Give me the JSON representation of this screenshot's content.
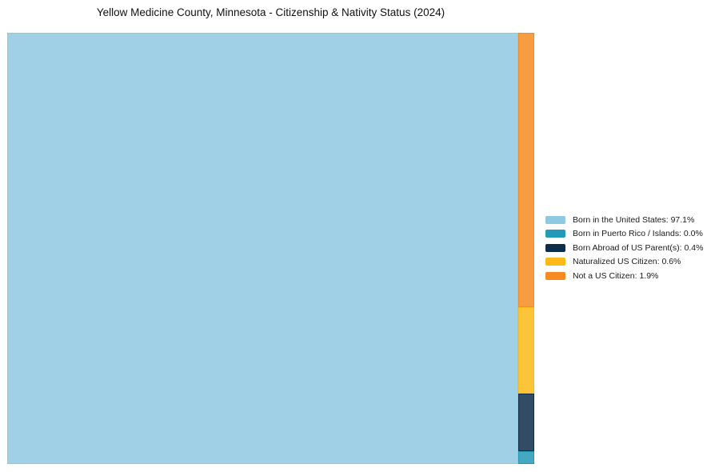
{
  "chart_data": {
    "type": "treemap",
    "title": "Yellow Medicine County, Minnesota - Citizenship & Nativity Status (2024)",
    "unit": "%",
    "legend_position": "right",
    "background_color": "#ffffff",
    "title_color": "#111111",
    "legend_text_color": "#1a1a1a",
    "categories": [
      {
        "label": "Born in the United States",
        "value": 97.1,
        "color": "#8fc8e2",
        "main": true
      },
      {
        "label": "Born in Puerto Rico / Islands",
        "value": 0.0,
        "color": "#2499b8",
        "main": false
      },
      {
        "label": "Born Abroad of US Parent(s)",
        "value": 0.4,
        "color": "#0e2d4a",
        "main": false
      },
      {
        "label": "Naturalized US Citizen",
        "value": 0.6,
        "color": "#fcba16",
        "main": false
      },
      {
        "label": "Not a US Citizen",
        "value": 1.9,
        "color": "#f78b21",
        "main": false
      }
    ]
  }
}
